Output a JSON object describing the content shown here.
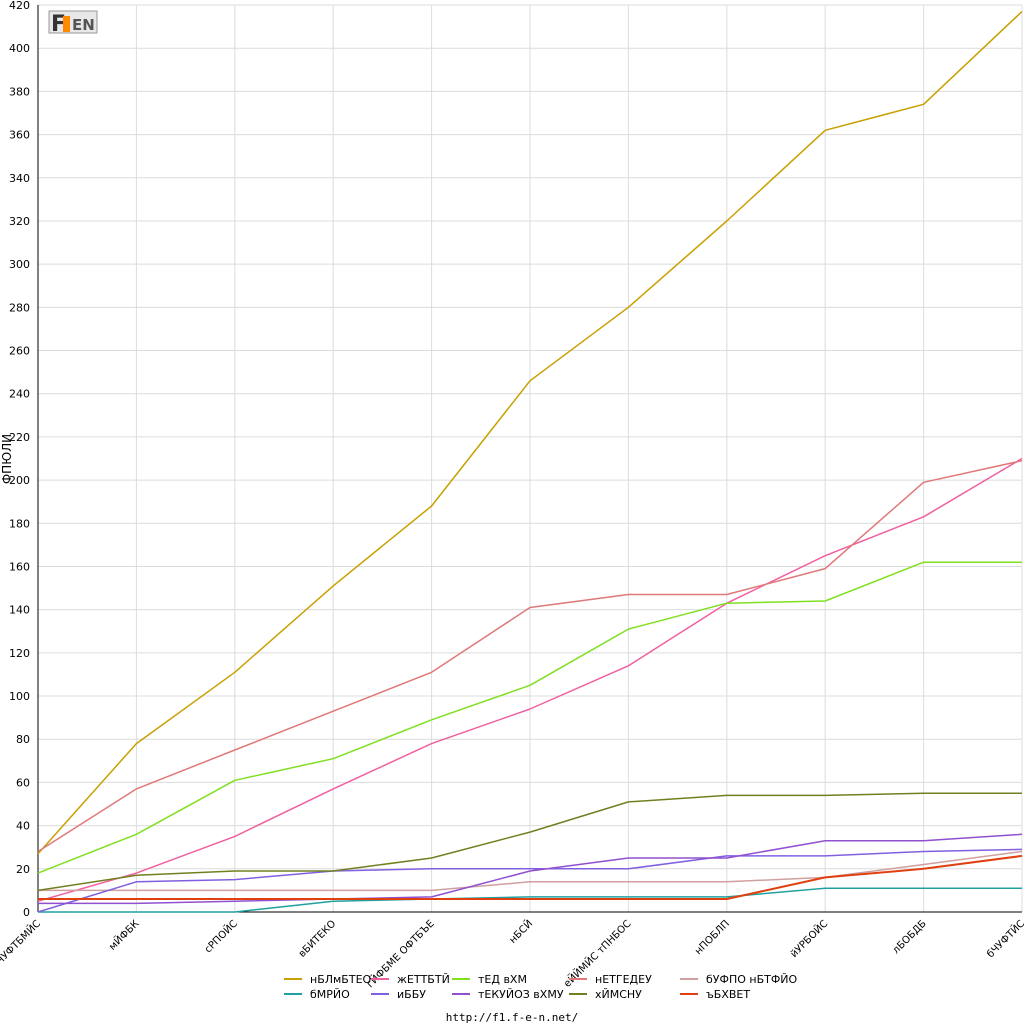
{
  "footer": {
    "url": "http://f1.f-e-n.net/"
  },
  "logo": {
    "text": "F1EN",
    "colors": {
      "dark": "#333333",
      "accent": "#ff8a00",
      "light": "#bbbbbb"
    }
  },
  "chart_data": {
    "type": "line",
    "ylabel": "ФПЮЛИ",
    "ylim": [
      0,
      420
    ],
    "ytick_step": 20,
    "grid": true,
    "legend_placement": "bottom",
    "categories": [
      "бЧУФТБМЙС",
      "мЙФБК",
      "сРПОЙС",
      "вБИТЕКО",
      "гЙФБМЕ ОФТБЪЕ",
      "нБСЙ",
      "еЙЙМЙС тПНБОС",
      "нПОБЛП",
      "йУРБОЙС",
      "лБОБДБ",
      "бЧУФТЙС"
    ],
    "series": [
      {
        "name": "нБЛмБТЕО",
        "color": "#c8a000",
        "values": [
          27,
          78,
          111,
          151,
          188,
          246,
          280,
          320,
          362,
          374,
          417
        ]
      },
      {
        "name": "жЕТТБТЙ",
        "color": "#f060a0",
        "values": [
          5,
          18,
          35,
          57,
          78,
          94,
          114,
          143,
          165,
          183,
          210
        ]
      },
      {
        "name": "тЕД вХМ",
        "color": "#80e020",
        "values": [
          18,
          36,
          61,
          71,
          89,
          105,
          131,
          143,
          144,
          162,
          162
        ]
      },
      {
        "name": "нЕТГЕДЕУ",
        "color": "#e07878",
        "values": [
          28,
          57,
          75,
          93,
          111,
          141,
          147,
          147,
          159,
          199,
          209
        ]
      },
      {
        "name": "бУФПО нБТФЙО",
        "color": "#d0a0a0",
        "values": [
          10,
          10,
          10,
          10,
          10,
          14,
          14,
          14,
          16,
          22,
          28
        ]
      },
      {
        "name": "бМРЙО",
        "color": "#20a0a0",
        "values": [
          0,
          0,
          0,
          5,
          6,
          7,
          7,
          7,
          11,
          11,
          11
        ]
      },
      {
        "name": "иББУ",
        "color": "#8060e0",
        "values": [
          0,
          14,
          15,
          19,
          20,
          20,
          20,
          26,
          26,
          28,
          29
        ]
      },
      {
        "name": "тЕКУЙОЗ вХМУ",
        "color": "#9050d0",
        "values": [
          4,
          4,
          5,
          6,
          7,
          19,
          25,
          25,
          33,
          33,
          36
        ]
      },
      {
        "name": "хЙМСНУ",
        "color": "#708020",
        "values": [
          10,
          17,
          19,
          19,
          25,
          37,
          51,
          54,
          54,
          55,
          55
        ]
      },
      {
        "name": "ъБХВЕТ",
        "color": "#e04010",
        "values": [
          6,
          6,
          6,
          6,
          6,
          6,
          6,
          6,
          16,
          20,
          26
        ]
      }
    ]
  }
}
